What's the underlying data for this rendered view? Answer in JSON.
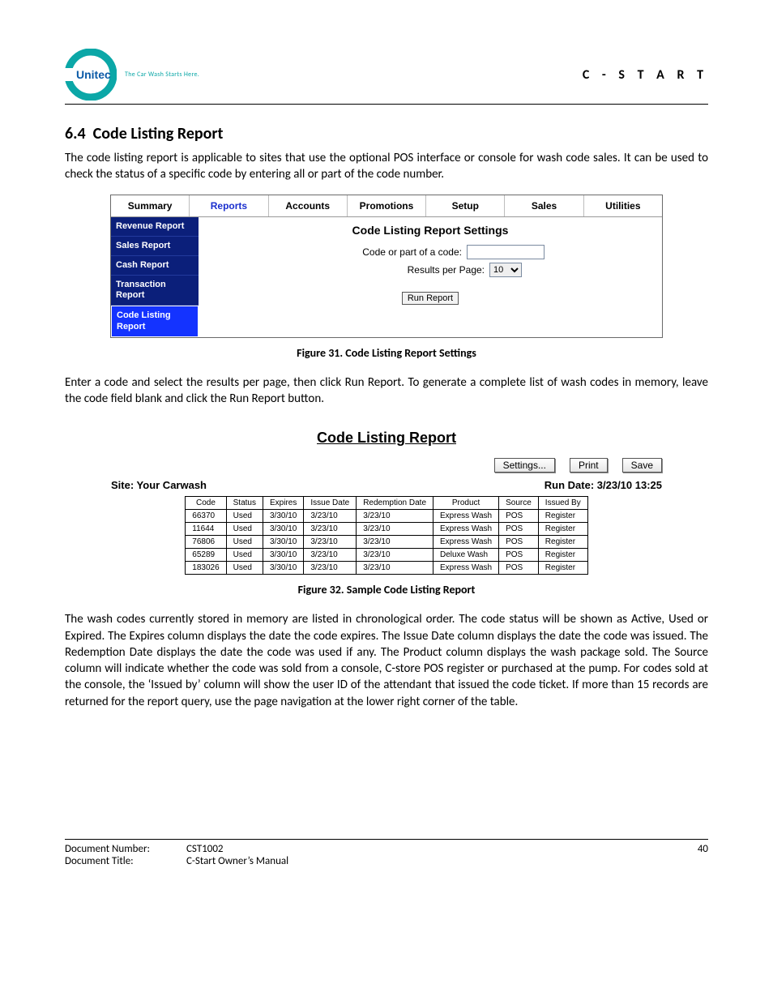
{
  "header": {
    "logo_tagline": "The Car Wash Starts Here.",
    "product": "C - S T A R T"
  },
  "section": {
    "number": "6.4",
    "title": "Code Listing Report",
    "para1": "The code listing report is applicable to sites that use the optional POS interface or console for wash code sales. It can be used to check the status of a specific code by entering all or part of the code number.",
    "fig31_caption": "Figure 31. Code Listing Report Settings",
    "para2": "Enter a code and select the results per page, then click Run Report. To generate a complete list of wash codes in memory, leave the code field blank and click the Run Report button.",
    "fig32_caption": "Figure 32. Sample Code Listing Report",
    "para3": "The wash codes currently stored in memory are listed in chronological order. The code status will be shown as Active, Used or Expired. The Expires column displays the date the code expires. The Issue Date column displays the date the code was issued. The Redemption Date displays the date the code was used if any. The Product column displays the wash package sold. The Source column will indicate whether the code was sold from a console, C-store POS register or purchased at the pump. For codes sold at the console, the ‘Issued by’ column will show the user ID of the attendant that issued the code ticket. If more than 15 records are returned for the report query, use the page navigation at the lower right corner of the table."
  },
  "settings": {
    "tabs": [
      "Summary",
      "Reports",
      "Accounts",
      "Promotions",
      "Setup",
      "Sales",
      "Utilities"
    ],
    "active_tab_index": 1,
    "sidebar": [
      "Revenue Report",
      "Sales Report",
      "Cash Report",
      "Transaction Report",
      "Code Listing Report"
    ],
    "selected_sidebar_index": 4,
    "panel_title": "Code Listing Report Settings",
    "code_label": "Code or part of a code:",
    "code_value": "",
    "results_label": "Results per Page:",
    "results_value": "10",
    "run_label": "Run Report"
  },
  "report": {
    "title": "Code Listing Report",
    "buttons": {
      "settings": "Settings...",
      "print": "Print",
      "save": "Save"
    },
    "site_label": "Site: Your Carwash",
    "run_date_label": "Run Date: 3/23/10 13:25",
    "columns": [
      "Code",
      "Status",
      "Expires",
      "Issue Date",
      "Redemption Date",
      "Product",
      "Source",
      "Issued By"
    ],
    "rows": [
      [
        "66370",
        "Used",
        "3/30/10",
        "3/23/10",
        "3/23/10",
        "Express Wash",
        "POS",
        "Register"
      ],
      [
        "11644",
        "Used",
        "3/30/10",
        "3/23/10",
        "3/23/10",
        "Express Wash",
        "POS",
        "Register"
      ],
      [
        "76806",
        "Used",
        "3/30/10",
        "3/23/10",
        "3/23/10",
        "Express Wash",
        "POS",
        "Register"
      ],
      [
        "65289",
        "Used",
        "3/30/10",
        "3/23/10",
        "3/23/10",
        "Deluxe Wash",
        "POS",
        "Register"
      ],
      [
        "183026",
        "Used",
        "3/30/10",
        "3/23/10",
        "3/23/10",
        "Express Wash",
        "POS",
        "Register"
      ]
    ]
  },
  "footer": {
    "docnum_label": "Document Number:",
    "docnum_value": "CST1002",
    "doctitle_label": "Document Title:",
    "doctitle_value": "C-Start Owner’s Manual",
    "page": "40"
  }
}
